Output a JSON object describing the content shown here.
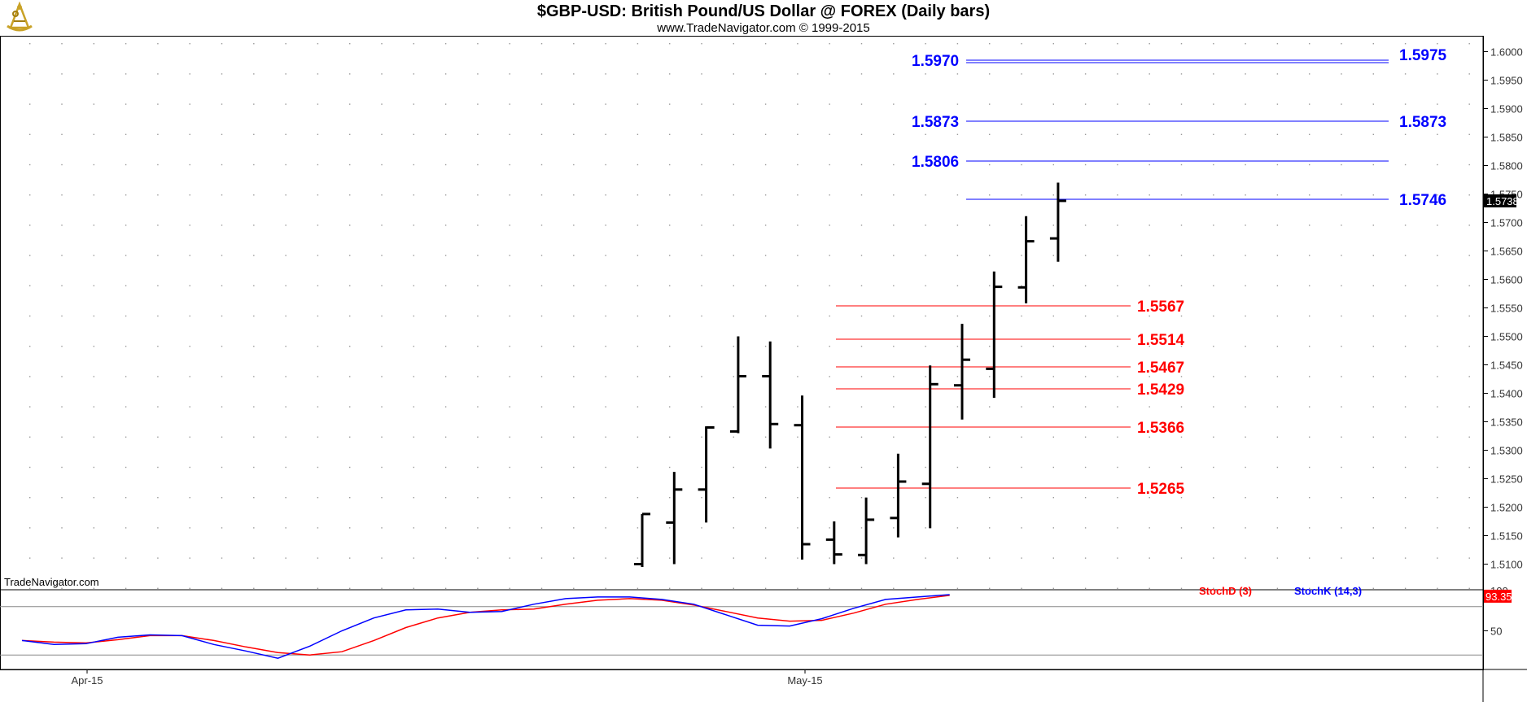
{
  "header": {
    "title": "$GBP-USD:  British Pound/US Dollar @ FOREX  (Daily bars)",
    "subtitle": "www.TradeNavigator.com © 1999-2015",
    "logo_icon": "sextant-logo-icon"
  },
  "watermark": "TradeNavigator.com",
  "colors": {
    "resistance": "#0000ff",
    "support": "#ff0000",
    "bars": "#000000",
    "stoch_d": "#ff0000",
    "stoch_k": "#0000ff",
    "grid_dots": "#999999"
  },
  "chart_data": [
    {
      "type": "ohlc",
      "ylim": [
        1.5095,
        1.6015
      ],
      "yticks": [
        "1.6000",
        "1.5950",
        "1.5900",
        "1.5850",
        "1.5800",
        "1.5750",
        "1.5700",
        "1.5650",
        "1.5600",
        "1.5550",
        "1.5500",
        "1.5450",
        "1.5400",
        "1.5350",
        "1.5300",
        "1.5250",
        "1.5200",
        "1.5150",
        "1.5100"
      ],
      "xticks": [
        "Apr-15",
        "May-15"
      ],
      "last_price": "1.5738",
      "bars": [
        {
          "open": 1.51,
          "high": 1.5188,
          "low": 1.5095,
          "close": 1.5188
        },
        {
          "open": 1.5173,
          "high": 1.5262,
          "low": 1.51,
          "close": 1.5231
        },
        {
          "open": 1.5231,
          "high": 1.5342,
          "low": 1.5173,
          "close": 1.534
        },
        {
          "open": 1.5333,
          "high": 1.55,
          "low": 1.533,
          "close": 1.543
        },
        {
          "open": 1.543,
          "high": 1.5491,
          "low": 1.5303,
          "close": 1.5346
        },
        {
          "open": 1.5344,
          "high": 1.5396,
          "low": 1.5108,
          "close": 1.5135
        },
        {
          "open": 1.5143,
          "high": 1.5175,
          "low": 1.51,
          "close": 1.5117
        },
        {
          "open": 1.5116,
          "high": 1.5217,
          "low": 1.51,
          "close": 1.5178
        },
        {
          "open": 1.5181,
          "high": 1.5294,
          "low": 1.5147,
          "close": 1.5245
        },
        {
          "open": 1.5241,
          "high": 1.5449,
          "low": 1.5163,
          "close": 1.5416
        },
        {
          "open": 1.5414,
          "high": 1.5522,
          "low": 1.5354,
          "close": 1.5459
        },
        {
          "open": 1.5443,
          "high": 1.5614,
          "low": 1.5392,
          "close": 1.5587
        },
        {
          "open": 1.5586,
          "high": 1.5711,
          "low": 1.5558,
          "close": 1.5667
        },
        {
          "open": 1.5672,
          "high": 1.577,
          "low": 1.5631,
          "close": 1.5738
        }
      ],
      "resistance_levels": [
        {
          "left": "1.5970",
          "right": "1.5975",
          "double": true
        },
        {
          "left": "1.5873",
          "right": "1.5873"
        },
        {
          "left": "1.5806",
          "right": ""
        },
        {
          "left": "",
          "right": "1.5746"
        }
      ],
      "support_levels": [
        "1.5567",
        "1.5514",
        "1.5467",
        "1.5429",
        "1.5366",
        "1.5265"
      ]
    },
    {
      "type": "line",
      "ylim": [
        0,
        100
      ],
      "yticks": [
        "100",
        "50"
      ],
      "series": [
        {
          "name": "StochD (3)",
          "color": "#ff0000",
          "values": [
            38,
            36,
            35,
            39,
            44,
            44,
            38,
            30,
            23,
            20,
            24,
            38,
            54,
            66,
            73,
            76,
            77,
            83,
            88,
            90,
            88,
            82,
            74,
            66,
            62,
            63,
            72,
            83,
            89,
            94
          ]
        },
        {
          "name": "StochK (14,3)",
          "color": "#0000ff",
          "values": [
            38,
            33,
            34,
            42,
            45,
            44,
            33,
            25,
            16,
            31,
            50,
            66,
            76,
            77,
            73,
            74,
            83,
            90,
            92,
            92,
            89,
            83,
            70,
            57,
            56,
            65,
            78,
            89,
            92,
            95
          ]
        }
      ],
      "last_value": "93.35"
    }
  ]
}
